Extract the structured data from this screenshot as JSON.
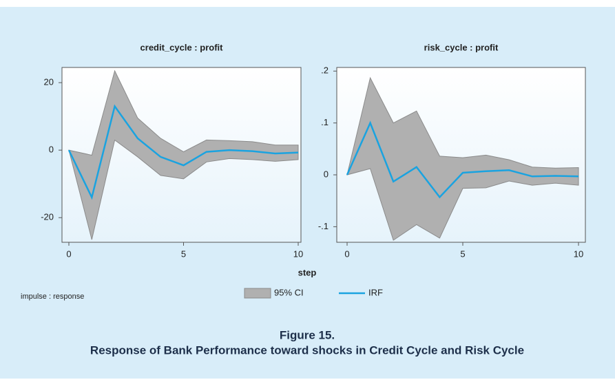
{
  "chart_data": [
    {
      "type": "line",
      "title": "credit_cycle : profit",
      "x": [
        0,
        1,
        2,
        3,
        4,
        5,
        6,
        7,
        8,
        9,
        10
      ],
      "series": [
        {
          "name": "95% CI",
          "color": "#b0b0b0",
          "band": true,
          "upper": [
            0,
            -1.5,
            23.5,
            9.5,
            3.5,
            -0.5,
            3,
            2.8,
            2.5,
            1.5,
            1.5
          ],
          "lower": [
            0,
            -26.5,
            3,
            -2,
            -7.5,
            -8.5,
            -3.5,
            -2.5,
            -2.8,
            -3.3,
            -2.8
          ]
        },
        {
          "name": "IRF",
          "color": "#1aa3e0",
          "values": [
            0,
            -14,
            13,
            3.5,
            -2,
            -4.5,
            -0.5,
            0,
            -0.3,
            -1,
            -0.7
          ]
        }
      ],
      "xlim": [
        0,
        10
      ],
      "xticks": [
        0,
        5,
        10
      ],
      "ylim": [
        -27.3,
        24.5
      ],
      "yticks": [
        -20,
        0,
        20
      ]
    },
    {
      "type": "line",
      "title": "risk_cycle : profit",
      "x": [
        0,
        1,
        2,
        3,
        4,
        5,
        6,
        7,
        8,
        9,
        10
      ],
      "series": [
        {
          "name": "95% CI",
          "color": "#b0b0b0",
          "band": true,
          "upper": [
            0,
            0.187,
            0.1,
            0.123,
            0.036,
            0.033,
            0.038,
            0.029,
            0.015,
            0.013,
            0.014
          ],
          "lower": [
            0,
            0.012,
            -0.126,
            -0.096,
            -0.122,
            -0.026,
            -0.025,
            -0.012,
            -0.02,
            -0.016,
            -0.02
          ]
        },
        {
          "name": "IRF",
          "color": "#1aa3e0",
          "values": [
            0,
            0.1,
            -0.013,
            0.015,
            -0.043,
            0.004,
            0.007,
            0.009,
            -0.003,
            -0.002,
            -0.003
          ]
        }
      ],
      "xlim": [
        0,
        10
      ],
      "xticks": [
        0,
        5,
        10
      ],
      "ylim": [
        -0.13,
        0.207
      ],
      "yticks": [
        {
          "value": -0.1,
          "label": "-.1"
        },
        0,
        {
          "value": 0.1,
          "label": ".1"
        },
        {
          "value": 0.2,
          "label": ".2"
        }
      ]
    }
  ],
  "xlabel": "step",
  "note": "impulse : response",
  "caption": {
    "label": "Figure 15.",
    "text": "Response of Bank Performance toward shocks in Credit Cycle and Risk Cycle"
  }
}
